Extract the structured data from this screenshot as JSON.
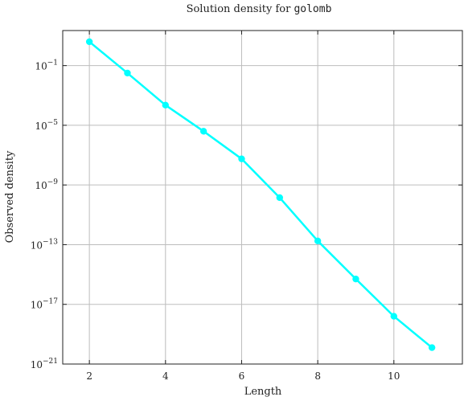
{
  "chart_data": {
    "type": "line",
    "title_prefix": "Solution density for ",
    "title_code": "golomb",
    "xlabel": "Length",
    "ylabel": "Observed density",
    "xlim": [
      1.3,
      11.8
    ],
    "ylim_log10": [
      -21,
      1.35
    ],
    "yscale": "log",
    "grid": true,
    "x_ticks": [
      2,
      4,
      6,
      8,
      10
    ],
    "x_tick_labels": [
      "2",
      "4",
      "6",
      "8",
      "10"
    ],
    "y_ticks_log10": [
      -1,
      -5,
      -9,
      -13,
      -17,
      -21
    ],
    "y_tick_base": "10",
    "y_tick_exponents": [
      "−1",
      "−5",
      "−9",
      "−13",
      "−17",
      "−21"
    ],
    "series": [
      {
        "color": "#00ffff",
        "x": [
          2,
          3,
          4,
          5,
          6,
          7,
          8,
          9,
          10,
          11
        ],
        "y_log10": [
          0.6,
          -1.5,
          -3.65,
          -5.4,
          -7.25,
          -9.85,
          -12.75,
          -15.3,
          -17.8,
          -19.9
        ]
      }
    ]
  }
}
